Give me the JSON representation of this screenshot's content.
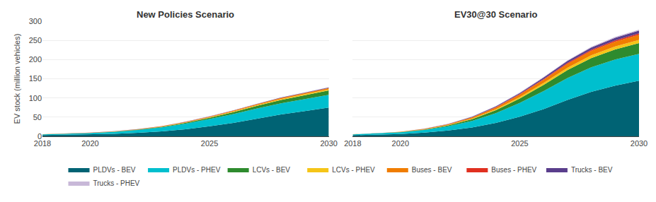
{
  "chart_data": [
    {
      "type": "area",
      "stacked": true,
      "grid": true,
      "legend": "bottom",
      "title": "New Policies Scenario",
      "y_label": "EV stock (million vehicles)",
      "x": [
        2018,
        2019,
        2020,
        2021,
        2022,
        2023,
        2024,
        2025,
        2026,
        2027,
        2028,
        2029,
        2030
      ],
      "xlim": [
        2018,
        2030
      ],
      "xticks": [
        2018,
        2020,
        2025,
        2030
      ],
      "ylim": [
        0,
        300
      ],
      "yticks": [
        0,
        50,
        100,
        150,
        200,
        250,
        300
      ],
      "series": [
        {
          "name": "PLDVs - BEV",
          "color": "#006374",
          "values": [
            3.0,
            3.8,
            4.8,
            6.5,
            9.0,
            13.0,
            18.5,
            26.0,
            35.0,
            46.0,
            57.0,
            66.0,
            75.0
          ]
        },
        {
          "name": "PLDVs - PHEV",
          "color": "#00BFCE",
          "values": [
            2.0,
            2.8,
            3.8,
            5.2,
            7.5,
            10.5,
            14.5,
            19.0,
            23.0,
            26.5,
            29.0,
            31.0,
            33.0
          ]
        },
        {
          "name": "LCVs - BEV",
          "color": "#2E8B2E",
          "values": [
            0.1,
            0.15,
            0.25,
            0.45,
            0.8,
            1.3,
            2.2,
            3.5,
            5.2,
            7.0,
            8.8,
            10.2,
            11.5
          ]
        },
        {
          "name": "LCVs - PHEV",
          "color": "#F5C518",
          "values": [
            0.05,
            0.08,
            0.12,
            0.2,
            0.35,
            0.55,
            0.85,
            1.2,
            1.6,
            2.0,
            2.4,
            2.7,
            3.0
          ]
        },
        {
          "name": "Buses - BEV",
          "color": "#F07D00",
          "values": [
            0.2,
            0.3,
            0.4,
            0.55,
            0.75,
            1.0,
            1.3,
            1.6,
            1.9,
            2.2,
            2.5,
            2.8,
            3.1
          ]
        },
        {
          "name": "Buses - PHEV",
          "color": "#E03020",
          "values": [
            0.05,
            0.07,
            0.09,
            0.12,
            0.16,
            0.21,
            0.27,
            0.33,
            0.4,
            0.47,
            0.54,
            0.61,
            0.68
          ]
        },
        {
          "name": "Trucks - BEV",
          "color": "#5A3E8C",
          "values": [
            0.05,
            0.07,
            0.1,
            0.14,
            0.19,
            0.26,
            0.35,
            0.46,
            0.58,
            0.72,
            0.87,
            1.0,
            1.15
          ]
        },
        {
          "name": "Trucks - PHEV",
          "color": "#C8B8D8",
          "values": [
            0.02,
            0.03,
            0.04,
            0.05,
            0.07,
            0.09,
            0.12,
            0.15,
            0.18,
            0.22,
            0.26,
            0.3,
            0.34
          ]
        }
      ]
    },
    {
      "type": "area",
      "stacked": true,
      "grid": true,
      "tick_labels": "x",
      "title": "EV30@30 Scenario",
      "x": [
        2018,
        2019,
        2020,
        2021,
        2022,
        2023,
        2024,
        2025,
        2026,
        2027,
        2028,
        2029,
        2030
      ],
      "xlim": [
        2018,
        2030
      ],
      "xticks": [
        2018,
        2020,
        2025,
        2030
      ],
      "ylim": [
        0,
        300
      ],
      "yticks": [
        0,
        50,
        100,
        150,
        200,
        250,
        300
      ],
      "series": [
        {
          "name": "PLDVs - BEV",
          "color": "#006374",
          "values": [
            3.0,
            4.2,
            6.0,
            9.5,
            15.0,
            23.0,
            35.0,
            51.0,
            71.0,
            95.0,
            116.0,
            132.0,
            145.0
          ]
        },
        {
          "name": "PLDVs - PHEV",
          "color": "#00BFCE",
          "values": [
            2.0,
            3.0,
            4.5,
            7.0,
            11.0,
            17.0,
            25.5,
            36.0,
            47.0,
            57.0,
            64.0,
            68.0,
            70.0
          ]
        },
        {
          "name": "LCVs - BEV",
          "color": "#2E8B2E",
          "values": [
            0.1,
            0.2,
            0.5,
            1.2,
            2.5,
            4.5,
            7.5,
            11.5,
            16.0,
            20.5,
            24.0,
            26.5,
            28.0
          ]
        },
        {
          "name": "LCVs - PHEV",
          "color": "#F5C518",
          "values": [
            0.05,
            0.1,
            0.2,
            0.45,
            0.9,
            1.6,
            2.6,
            3.8,
            5.0,
            6.2,
            7.0,
            7.6,
            8.0
          ]
        },
        {
          "name": "Buses - BEV",
          "color": "#F07D00",
          "values": [
            0.2,
            0.35,
            0.6,
            1.1,
            1.9,
            3.0,
            4.5,
            6.3,
            8.2,
            10.0,
            11.5,
            12.5,
            13.5
          ]
        },
        {
          "name": "Buses - PHEV",
          "color": "#E03020",
          "values": [
            0.05,
            0.08,
            0.14,
            0.25,
            0.45,
            0.75,
            1.15,
            1.6,
            2.1,
            2.6,
            3.0,
            3.3,
            3.6
          ]
        },
        {
          "name": "Trucks - BEV",
          "color": "#5A3E8C",
          "values": [
            0.05,
            0.1,
            0.18,
            0.35,
            0.65,
            1.1,
            1.8,
            2.7,
            3.8,
            5.0,
            6.0,
            6.8,
            7.5
          ]
        },
        {
          "name": "Trucks - PHEV",
          "color": "#C8B8D8",
          "values": [
            0.02,
            0.04,
            0.07,
            0.13,
            0.24,
            0.42,
            0.68,
            1.0,
            1.35,
            1.72,
            2.0,
            2.25,
            2.5
          ]
        }
      ]
    }
  ]
}
